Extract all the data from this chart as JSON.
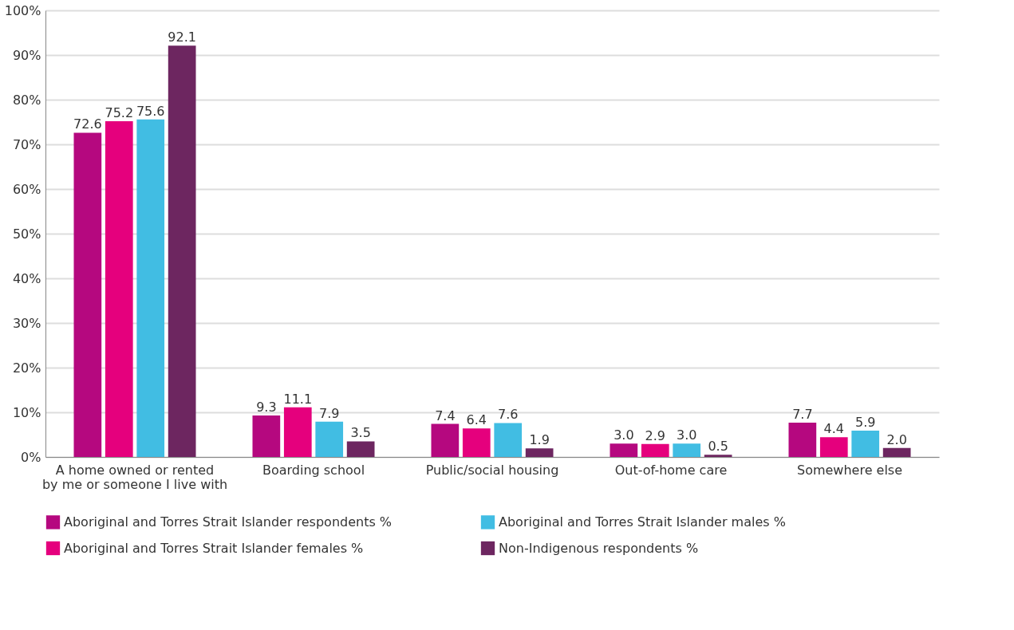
{
  "chart_data": {
    "type": "bar",
    "categories": [
      "A home owned or rented\nby me or someone I live with",
      "Boarding school",
      "Public/social housing",
      "Out-of-home care",
      "Somewhere else"
    ],
    "series": [
      {
        "name": "Aboriginal and Torres Strait Islander respondents %",
        "color": "#b5087f",
        "values": [
          72.6,
          9.3,
          7.4,
          3.0,
          7.7
        ],
        "value_labels": [
          "72.6",
          "9.3",
          "7.4",
          "3.0",
          "7.7"
        ]
      },
      {
        "name": "Aboriginal and Torres Strait Islander females %",
        "color": "#e5007d",
        "values": [
          75.2,
          11.1,
          6.4,
          2.9,
          4.4
        ],
        "value_labels": [
          "75.2",
          "11.1",
          "6.4",
          "2.9",
          "4.4"
        ]
      },
      {
        "name": "Aboriginal and Torres Strait Islander males %",
        "color": "#41bde3",
        "values": [
          75.6,
          7.9,
          7.6,
          3.0,
          5.9
        ],
        "value_labels": [
          "75.6",
          "7.9",
          "7.6",
          "3.0",
          "5.9"
        ]
      },
      {
        "name": "Non-Indigenous respondents %",
        "color": "#6d2660",
        "values": [
          92.1,
          3.5,
          1.9,
          0.5,
          2.0
        ],
        "value_labels": [
          "92.1",
          "3.5",
          "1.9",
          "0.5",
          "2.0"
        ]
      }
    ],
    "ylim": [
      0,
      100
    ],
    "yticks": [
      {
        "value": 0,
        "label": "0%"
      },
      {
        "value": 10,
        "label": "10%"
      },
      {
        "value": 20,
        "label": "20%"
      },
      {
        "value": 30,
        "label": "30%"
      },
      {
        "value": 40,
        "label": "40%"
      },
      {
        "value": 50,
        "label": "50%"
      },
      {
        "value": 60,
        "label": "60%"
      },
      {
        "value": 70,
        "label": "70%"
      },
      {
        "value": 80,
        "label": "80%"
      },
      {
        "value": 90,
        "label": "90%"
      },
      {
        "value": 100,
        "label": "100%"
      }
    ],
    "grid": "y",
    "legend": "bottom"
  }
}
